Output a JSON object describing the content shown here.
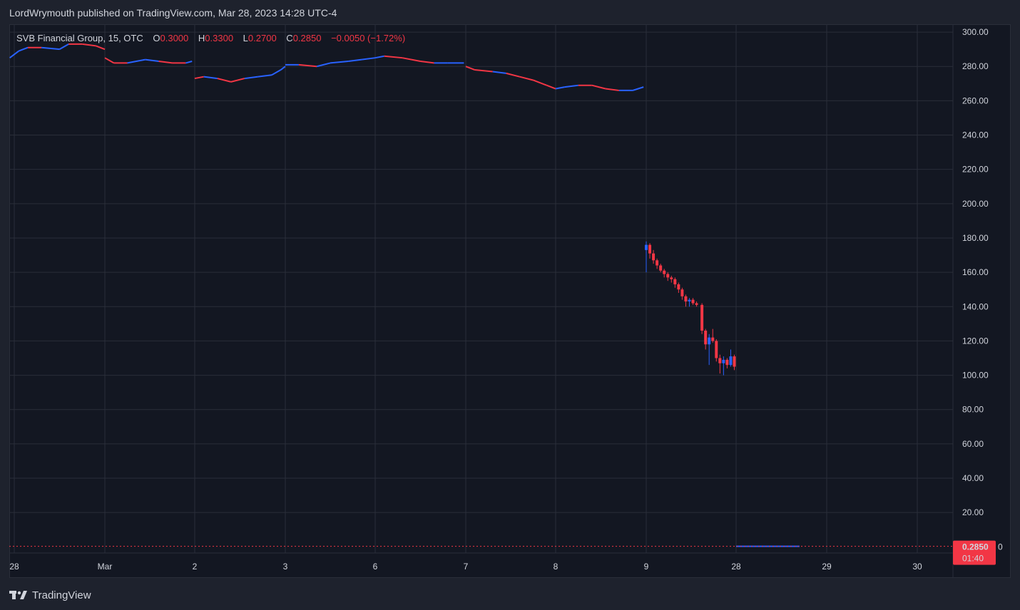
{
  "header": {
    "text": "LordWrymouth published on TradingView.com, Mar 28, 2023 14:28 UTC-4"
  },
  "legend": {
    "symbol": "SVB Financial Group, 15, OTC",
    "o_label": "O",
    "o_value": "0.3000",
    "h_label": "H",
    "h_value": "0.3300",
    "l_label": "L",
    "l_value": "0.2700",
    "c_label": "C",
    "c_value": "0.2850",
    "change": "−0.0050 (−1.72%)"
  },
  "price_tag": {
    "price": "0.2850",
    "countdown": "01:40",
    "edge_digit": "0"
  },
  "footer": {
    "brand": "TradingView"
  },
  "colors": {
    "up": "#2962ff",
    "down": "#f23645",
    "background": "#131722",
    "grid": "#2a2e39",
    "text": "#d1d4dc"
  },
  "chart_data": {
    "type": "candlestick",
    "title": "SVB Financial Group, 15, OTC",
    "xlabel": "",
    "ylabel": "",
    "ylim": [
      -3.6,
      304.6
    ],
    "y_ticks": [
      "300.00",
      "280.00",
      "260.00",
      "240.00",
      "220.00",
      "200.00",
      "180.00",
      "160.00",
      "140.00",
      "120.00",
      "100.00",
      "80.00",
      "60.00",
      "40.00",
      "20.00"
    ],
    "x_ticks": [
      {
        "label": "28",
        "t": 0.0
      },
      {
        "label": "Mar",
        "t": 1.0
      },
      {
        "label": "2",
        "t": 2.0
      },
      {
        "label": "3",
        "t": 3.0
      },
      {
        "label": "6",
        "t": 4.0
      },
      {
        "label": "7",
        "t": 5.0
      },
      {
        "label": "8",
        "t": 6.0
      },
      {
        "label": "9",
        "t": 7.0
      },
      {
        "label": "28",
        "t": 8.0
      },
      {
        "label": "29",
        "t": 9.0
      },
      {
        "label": "30",
        "t": 10.0
      }
    ],
    "trend_segments": [
      {
        "from_t": -0.05,
        "to_t": 1.0,
        "points": [
          [
            -0.05,
            285
          ],
          [
            0.05,
            289
          ],
          [
            0.15,
            291
          ],
          [
            0.3,
            291
          ],
          [
            0.5,
            290
          ],
          [
            0.6,
            293
          ],
          [
            0.75,
            293
          ],
          [
            0.9,
            292
          ],
          [
            1.0,
            290
          ]
        ],
        "colors": [
          "up",
          "up",
          "down",
          "up",
          "up",
          "down",
          "down",
          "down"
        ]
      },
      {
        "from_t": 1.0,
        "to_t": 2.0,
        "points": [
          [
            1.0,
            285
          ],
          [
            1.1,
            282
          ],
          [
            1.25,
            282
          ],
          [
            1.45,
            284
          ],
          [
            1.6,
            283
          ],
          [
            1.75,
            282
          ],
          [
            1.9,
            282
          ],
          [
            1.97,
            283
          ]
        ],
        "colors": [
          "down",
          "down",
          "up",
          "up",
          "down",
          "down",
          "up"
        ]
      },
      {
        "from_t": 2.0,
        "to_t": 3.0,
        "points": [
          [
            2.0,
            273
          ],
          [
            2.1,
            274
          ],
          [
            2.25,
            273
          ],
          [
            2.4,
            271
          ],
          [
            2.55,
            273
          ],
          [
            2.7,
            274
          ],
          [
            2.85,
            275
          ],
          [
            2.95,
            278
          ],
          [
            3.0,
            280
          ]
        ],
        "colors": [
          "down",
          "up",
          "down",
          "down",
          "up",
          "up",
          "up",
          "up"
        ]
      },
      {
        "from_t": 3.0,
        "to_t": 4.0,
        "points": [
          [
            3.0,
            281
          ],
          [
            3.15,
            281
          ],
          [
            3.35,
            280
          ],
          [
            3.5,
            282
          ],
          [
            3.7,
            283
          ],
          [
            3.85,
            284
          ],
          [
            4.0,
            285
          ]
        ],
        "colors": [
          "up",
          "down",
          "up",
          "up",
          "up",
          "up"
        ]
      },
      {
        "from_t": 4.0,
        "to_t": 5.0,
        "points": [
          [
            4.0,
            285
          ],
          [
            4.1,
            286
          ],
          [
            4.3,
            285
          ],
          [
            4.5,
            283
          ],
          [
            4.65,
            282
          ],
          [
            4.8,
            282
          ],
          [
            4.98,
            282
          ]
        ],
        "colors": [
          "up",
          "down",
          "down",
          "down",
          "up",
          "up"
        ]
      },
      {
        "from_t": 5.0,
        "to_t": 6.0,
        "points": [
          [
            5.0,
            280
          ],
          [
            5.1,
            278
          ],
          [
            5.3,
            277
          ],
          [
            5.45,
            276
          ],
          [
            5.6,
            274
          ],
          [
            5.75,
            272
          ],
          [
            5.9,
            269
          ],
          [
            6.0,
            267
          ]
        ],
        "colors": [
          "down",
          "down",
          "up",
          "down",
          "down",
          "down",
          "down"
        ]
      },
      {
        "from_t": 6.0,
        "to_t": 7.0,
        "points": [
          [
            6.0,
            267
          ],
          [
            6.1,
            268
          ],
          [
            6.25,
            269
          ],
          [
            6.4,
            269
          ],
          [
            6.55,
            267
          ],
          [
            6.7,
            266
          ],
          [
            6.85,
            266
          ],
          [
            6.97,
            268
          ]
        ],
        "colors": [
          "up",
          "up",
          "down",
          "down",
          "down",
          "up",
          "up"
        ]
      }
    ],
    "candles": [
      {
        "t": 7.0,
        "o": 173,
        "h": 178,
        "l": 160,
        "c": 176,
        "dir": "up"
      },
      {
        "t": 7.04,
        "o": 176,
        "h": 177,
        "l": 168,
        "c": 171,
        "dir": "down"
      },
      {
        "t": 7.08,
        "o": 171,
        "h": 173,
        "l": 165,
        "c": 167,
        "dir": "down"
      },
      {
        "t": 7.12,
        "o": 167,
        "h": 168,
        "l": 162,
        "c": 164,
        "dir": "down"
      },
      {
        "t": 7.16,
        "o": 164,
        "h": 165,
        "l": 160,
        "c": 161,
        "dir": "down"
      },
      {
        "t": 7.2,
        "o": 161,
        "h": 162,
        "l": 157,
        "c": 159,
        "dir": "down"
      },
      {
        "t": 7.24,
        "o": 159,
        "h": 160,
        "l": 155,
        "c": 157,
        "dir": "down"
      },
      {
        "t": 7.28,
        "o": 157,
        "h": 158,
        "l": 154,
        "c": 156,
        "dir": "down"
      },
      {
        "t": 7.32,
        "o": 156,
        "h": 157,
        "l": 151,
        "c": 153,
        "dir": "down"
      },
      {
        "t": 7.36,
        "o": 153,
        "h": 154,
        "l": 148,
        "c": 150,
        "dir": "down"
      },
      {
        "t": 7.4,
        "o": 150,
        "h": 151,
        "l": 144,
        "c": 146,
        "dir": "down"
      },
      {
        "t": 7.44,
        "o": 146,
        "h": 147,
        "l": 140,
        "c": 143,
        "dir": "down"
      },
      {
        "t": 7.48,
        "o": 143,
        "h": 145,
        "l": 140,
        "c": 144,
        "dir": "up"
      },
      {
        "t": 7.52,
        "o": 144,
        "h": 145,
        "l": 141,
        "c": 142,
        "dir": "down"
      },
      {
        "t": 7.56,
        "o": 142,
        "h": 143,
        "l": 140,
        "c": 141,
        "dir": "down"
      },
      {
        "t": 7.62,
        "o": 141,
        "h": 142,
        "l": 124,
        "c": 126,
        "dir": "down"
      },
      {
        "t": 7.66,
        "o": 126,
        "h": 127,
        "l": 115,
        "c": 118,
        "dir": "down"
      },
      {
        "t": 7.7,
        "o": 118,
        "h": 124,
        "l": 106,
        "c": 122,
        "dir": "up"
      },
      {
        "t": 7.74,
        "o": 122,
        "h": 127,
        "l": 119,
        "c": 120,
        "dir": "down"
      },
      {
        "t": 7.78,
        "o": 120,
        "h": 121,
        "l": 108,
        "c": 110,
        "dir": "down"
      },
      {
        "t": 7.82,
        "o": 110,
        "h": 112,
        "l": 101,
        "c": 107,
        "dir": "down"
      },
      {
        "t": 7.86,
        "o": 107,
        "h": 111,
        "l": 100,
        "c": 109,
        "dir": "up"
      },
      {
        "t": 7.9,
        "o": 109,
        "h": 110,
        "l": 104,
        "c": 106,
        "dir": "down"
      },
      {
        "t": 7.94,
        "o": 106,
        "h": 115,
        "l": 105,
        "c": 111,
        "dir": "up"
      },
      {
        "t": 7.98,
        "o": 111,
        "h": 112,
        "l": 103,
        "c": 105,
        "dir": "down"
      }
    ],
    "post_line": {
      "from_t": 8.0,
      "to_t": 8.7,
      "value": 0.285
    },
    "last_price": 0.285
  }
}
